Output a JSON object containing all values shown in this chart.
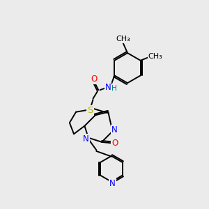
{
  "bg_color": "#ebebeb",
  "bond_color": "#000000",
  "atom_colors": {
    "N": "#0000ff",
    "O": "#ff0000",
    "S": "#b8b800",
    "H": "#008080",
    "C": "#000000"
  },
  "font_size": 8.5
}
